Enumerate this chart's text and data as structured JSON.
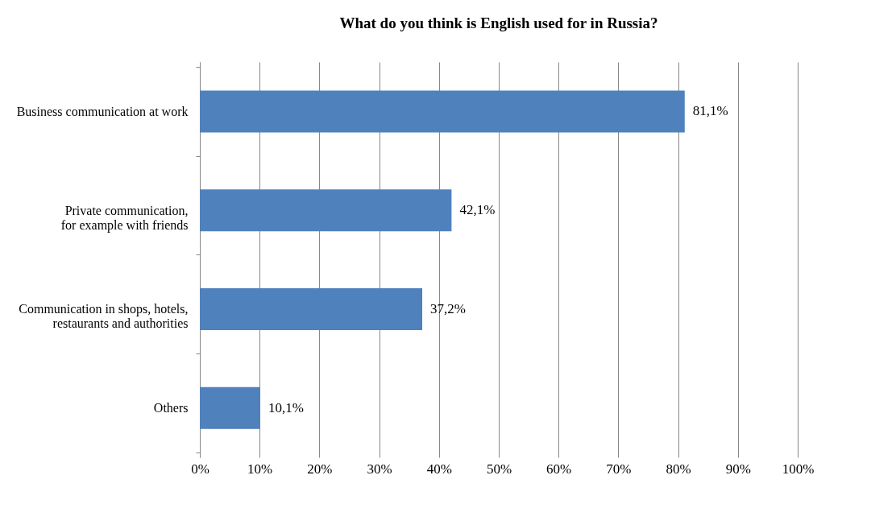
{
  "chart_data": {
    "type": "bar",
    "orientation": "horizontal",
    "title": "What do you think is English used for in Russia?",
    "categories": [
      "Business communication at work",
      "Private communication,\nfor example with friends",
      "Communication in shops, hotels,\nrestaurants and authorities",
      "Others"
    ],
    "values": [
      81.1,
      42.1,
      37.2,
      10.1
    ],
    "value_labels": [
      "81,1%",
      "42,1%",
      "37,2%",
      "10,1%"
    ],
    "color": "#4f81bd",
    "xlim": [
      0,
      100
    ],
    "xticks": [
      {
        "value": 0,
        "label": "0%"
      },
      {
        "value": 10,
        "label": "10%"
      },
      {
        "value": 20,
        "label": "20%"
      },
      {
        "value": 30,
        "label": "30%"
      },
      {
        "value": 40,
        "label": "40%"
      },
      {
        "value": 50,
        "label": "50%"
      },
      {
        "value": 60,
        "label": "60%"
      },
      {
        "value": 70,
        "label": "70%"
      },
      {
        "value": 80,
        "label": "80%"
      },
      {
        "value": 90,
        "label": "90%"
      },
      {
        "value": 100,
        "label": "100%"
      }
    ],
    "grid": "x"
  }
}
